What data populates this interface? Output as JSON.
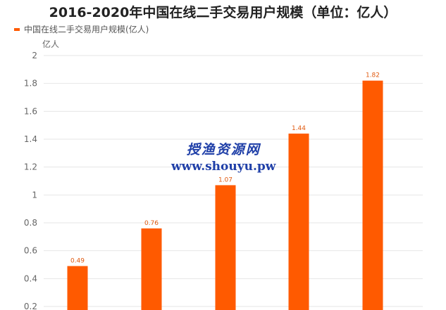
{
  "title": "2016-2020年中国在线二手交易用户规模（单位：亿人）",
  "legend": {
    "label": "中国在线二手交易用户规模(亿人)"
  },
  "watermark": {
    "line1": "授渔资源网",
    "line2": "www.shouyu.pw"
  },
  "colors": {
    "bar": "#ff5a00",
    "label": "#e05a10",
    "grid": "#e6e6e6",
    "tick": "#666666"
  },
  "chart_data": {
    "type": "bar",
    "title": "2016-2020年中国在线二手交易用户规模（单位：亿人）",
    "ylabel": "亿人",
    "xlabel": "",
    "categories": [
      "",
      "",
      "",
      "",
      ""
    ],
    "series": [
      {
        "name": "中国在线二手交易用户规模(亿人)",
        "values": [
          0.49,
          0.76,
          1.07,
          1.44,
          1.82
        ]
      }
    ],
    "ylim": [
      0.2,
      2
    ],
    "yticks": [
      0.2,
      0.4,
      0.6,
      0.8,
      1,
      1.2,
      1.4,
      1.6,
      1.8,
      2
    ],
    "grid": true,
    "legend_position": "top-left"
  }
}
